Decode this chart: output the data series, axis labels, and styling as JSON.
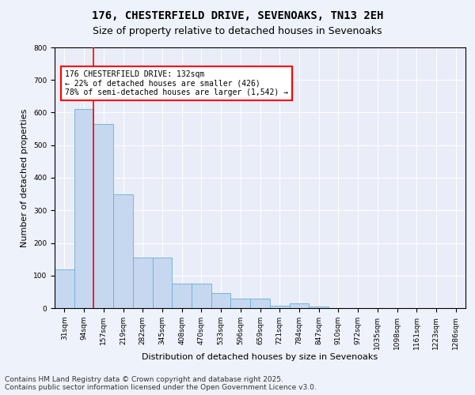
{
  "title_line1": "176, CHESTERFIELD DRIVE, SEVENOAKS, TN13 2EH",
  "title_line2": "Size of property relative to detached houses in Sevenoaks",
  "xlabel": "Distribution of detached houses by size in Sevenoaks",
  "ylabel": "Number of detached properties",
  "categories": [
    "31sqm",
    "94sqm",
    "157sqm",
    "219sqm",
    "282sqm",
    "345sqm",
    "408sqm",
    "470sqm",
    "533sqm",
    "596sqm",
    "659sqm",
    "721sqm",
    "784sqm",
    "847sqm",
    "910sqm",
    "972sqm",
    "1035sqm",
    "1098sqm",
    "1161sqm",
    "1223sqm",
    "1286sqm"
  ],
  "values": [
    120,
    610,
    565,
    350,
    155,
    155,
    75,
    75,
    45,
    30,
    30,
    8,
    15,
    5,
    0,
    0,
    0,
    0,
    0,
    0,
    0
  ],
  "bar_color": "#c5d8f0",
  "bar_edge_color": "#6baed6",
  "vline_color": "red",
  "vline_x": 1.5,
  "annotation_text": "176 CHESTERFIELD DRIVE: 132sqm\n← 22% of detached houses are smaller (426)\n78% of semi-detached houses are larger (1,542) →",
  "annotation_box_color": "white",
  "annotation_box_edge": "red",
  "ylim": [
    0,
    800
  ],
  "yticks": [
    0,
    100,
    200,
    300,
    400,
    500,
    600,
    700,
    800
  ],
  "background_color": "#eef2fa",
  "plot_bg_color": "#e8edf8",
  "footer_text": "Contains HM Land Registry data © Crown copyright and database right 2025.\nContains public sector information licensed under the Open Government Licence v3.0.",
  "title_fontsize": 10,
  "subtitle_fontsize": 9,
  "tick_fontsize": 6.5,
  "label_fontsize": 8,
  "footer_fontsize": 6.5,
  "annot_fontsize": 7
}
